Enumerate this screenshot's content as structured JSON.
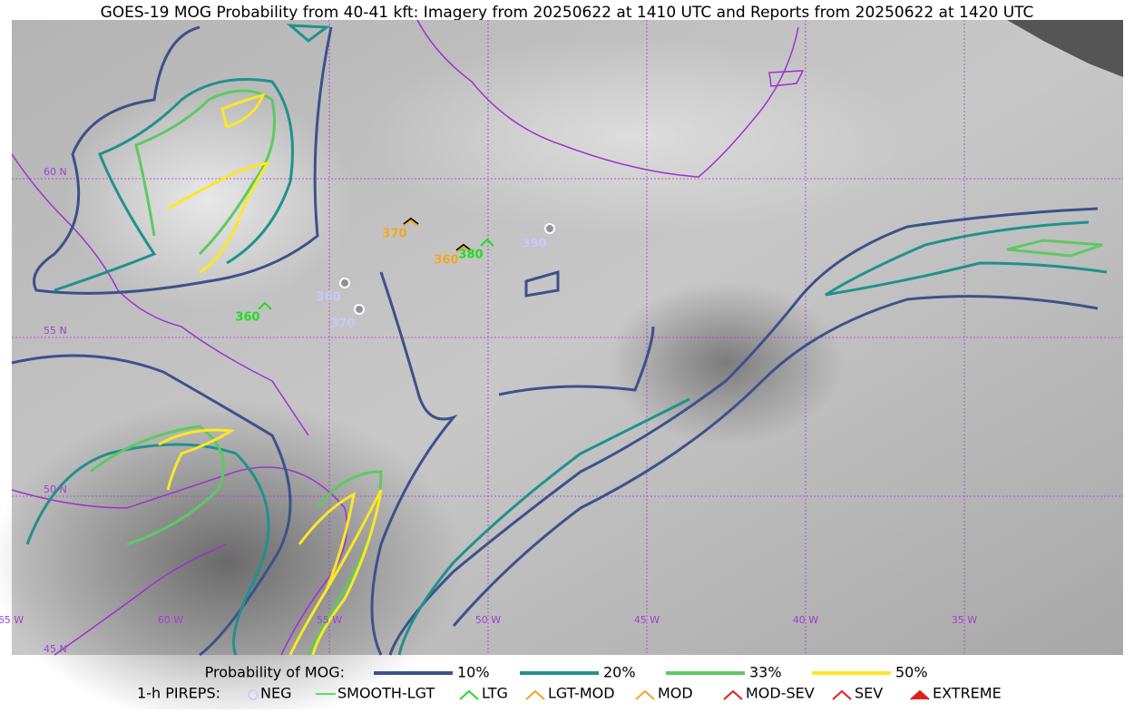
{
  "header": {
    "title": "GOES-19 MOG Probability from 40-41 kft: Imagery from 20250622 at 1410 UTC and Reports from 20250622 at 1420 UTC"
  },
  "map": {
    "lat_labels": [
      "60 N",
      "55 N",
      "50 N",
      "45 N"
    ],
    "lon_labels": [
      "65 W",
      "60 W",
      "55 W",
      "50 W",
      "45 W",
      "40 W",
      "35 W"
    ],
    "reports": [
      {
        "label": "370",
        "color": "#f5a623"
      },
      {
        "label": "360",
        "color": "#f5a623"
      },
      {
        "label": "380",
        "color": "#22dd22"
      },
      {
        "label": "390",
        "color": "#c8c8ff"
      },
      {
        "label": "360",
        "color": "#c8c8ff"
      },
      {
        "label": "370",
        "color": "#c8c8ff"
      },
      {
        "label": "360",
        "color": "#22dd22"
      }
    ]
  },
  "legend": {
    "probability_title": "Probability of MOG:",
    "probability_items": [
      {
        "label": "10%",
        "color": "#3b528b"
      },
      {
        "label": "20%",
        "color": "#21918c"
      },
      {
        "label": "33%",
        "color": "#5ec962"
      },
      {
        "label": "50%",
        "color": "#fde725"
      }
    ],
    "pireps_title": "1-h PIREPS:",
    "pireps_items": [
      {
        "label": "NEG",
        "color": "#c8c8ff"
      },
      {
        "label": "SMOOTH-LGT",
        "color": "#22dd22"
      },
      {
        "label": "LTG",
        "color": "#22dd22"
      },
      {
        "label": "LGT-MOD",
        "color": "#f5a623"
      },
      {
        "label": "MOD",
        "color": "#f5a623"
      },
      {
        "label": "MOD-SEV",
        "color": "#e02020"
      },
      {
        "label": "SEV",
        "color": "#e02020"
      },
      {
        "label": "EXTREME",
        "color": "#e02020"
      }
    ]
  }
}
